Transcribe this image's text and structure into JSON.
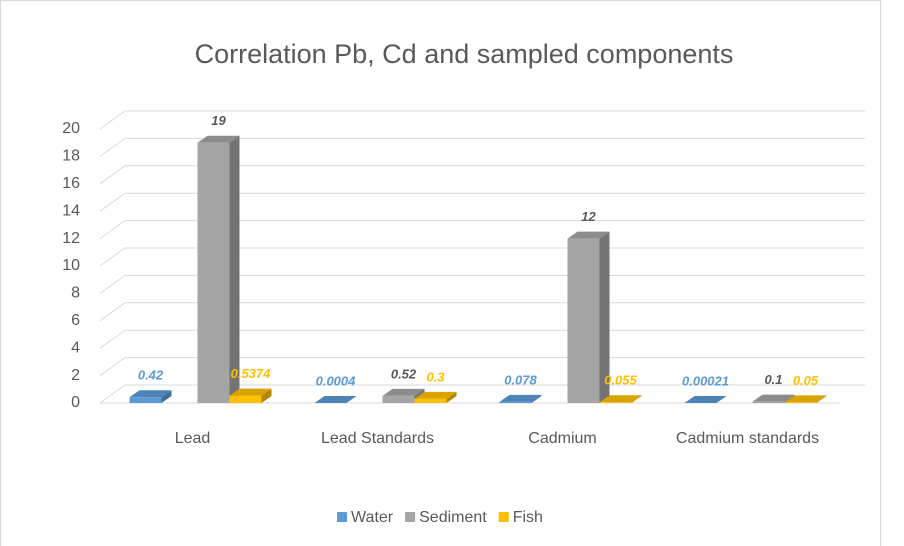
{
  "chart_data": {
    "type": "bar3d",
    "title": "Correlation Pb, Cd and sampled components",
    "categories": [
      "Lead",
      "Lead Standards",
      "Cadmium",
      "Cadmium standards"
    ],
    "series": [
      {
        "name": "Water",
        "color": "#5b9bd5",
        "values": [
          0.42,
          0.0004,
          0.078,
          0.00021
        ]
      },
      {
        "name": "Sediment",
        "color": "#a5a5a5",
        "values": [
          19,
          0.52,
          12,
          0.1
        ]
      },
      {
        "name": "Fish",
        "color": "#ffc000",
        "values": [
          0.5374,
          0.3,
          0.055,
          0.05
        ]
      }
    ],
    "ylim": [
      0,
      20
    ],
    "yticks": [
      0,
      2,
      4,
      6,
      8,
      10,
      12,
      14,
      16,
      18,
      20
    ],
    "grid": true,
    "legend": "bottom"
  }
}
